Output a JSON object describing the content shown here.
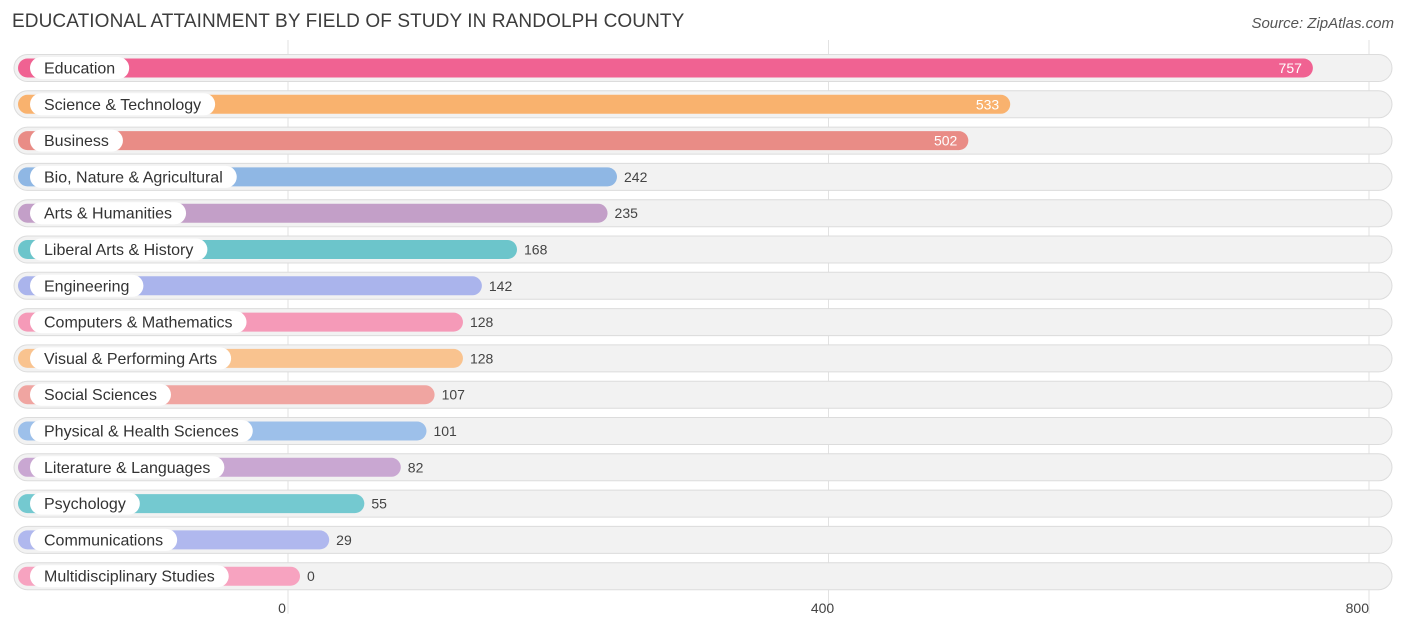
{
  "header": {
    "title": "EDUCATIONAL ATTAINMENT BY FIELD OF STUDY IN RANDOLPH COUNTY",
    "source": "Source: ZipAtlas.com"
  },
  "chart_data": {
    "type": "bar",
    "orientation": "horizontal",
    "title": "EDUCATIONAL ATTAINMENT BY FIELD OF STUDY IN RANDOLPH COUNTY",
    "categories": [
      "Education",
      "Science & Technology",
      "Business",
      "Bio, Nature & Agricultural",
      "Arts & Humanities",
      "Liberal Arts & History",
      "Engineering",
      "Computers & Mathematics",
      "Visual & Performing Arts",
      "Social Sciences",
      "Physical & Health Sciences",
      "Literature & Languages",
      "Psychology",
      "Communications",
      "Multidisciplinary Studies"
    ],
    "values": [
      757,
      533,
      502,
      242,
      235,
      168,
      142,
      128,
      128,
      107,
      101,
      82,
      55,
      29,
      0
    ],
    "value_labels": [
      "757",
      "533",
      "502",
      "242",
      "235",
      "168",
      "142",
      "128",
      "128",
      "107",
      "101",
      "82",
      "55",
      "29",
      "0"
    ],
    "colors": [
      "#f06292",
      "#f9b26e",
      "#e98c86",
      "#8fb7e4",
      "#c39fc8",
      "#6cc5cb",
      "#aab4ec",
      "#f59ab8",
      "#f9c38f",
      "#f0a5a1",
      "#9dc0ea",
      "#c9a7d2",
      "#74c9d0",
      "#b0b8ee",
      "#f7a3c0"
    ],
    "xlim": [
      0,
      800
    ],
    "xticks": [
      0,
      400,
      800
    ],
    "xtick_labels": [
      "0",
      "400",
      "800"
    ],
    "grid": true,
    "xlabel": "",
    "ylabel": ""
  }
}
